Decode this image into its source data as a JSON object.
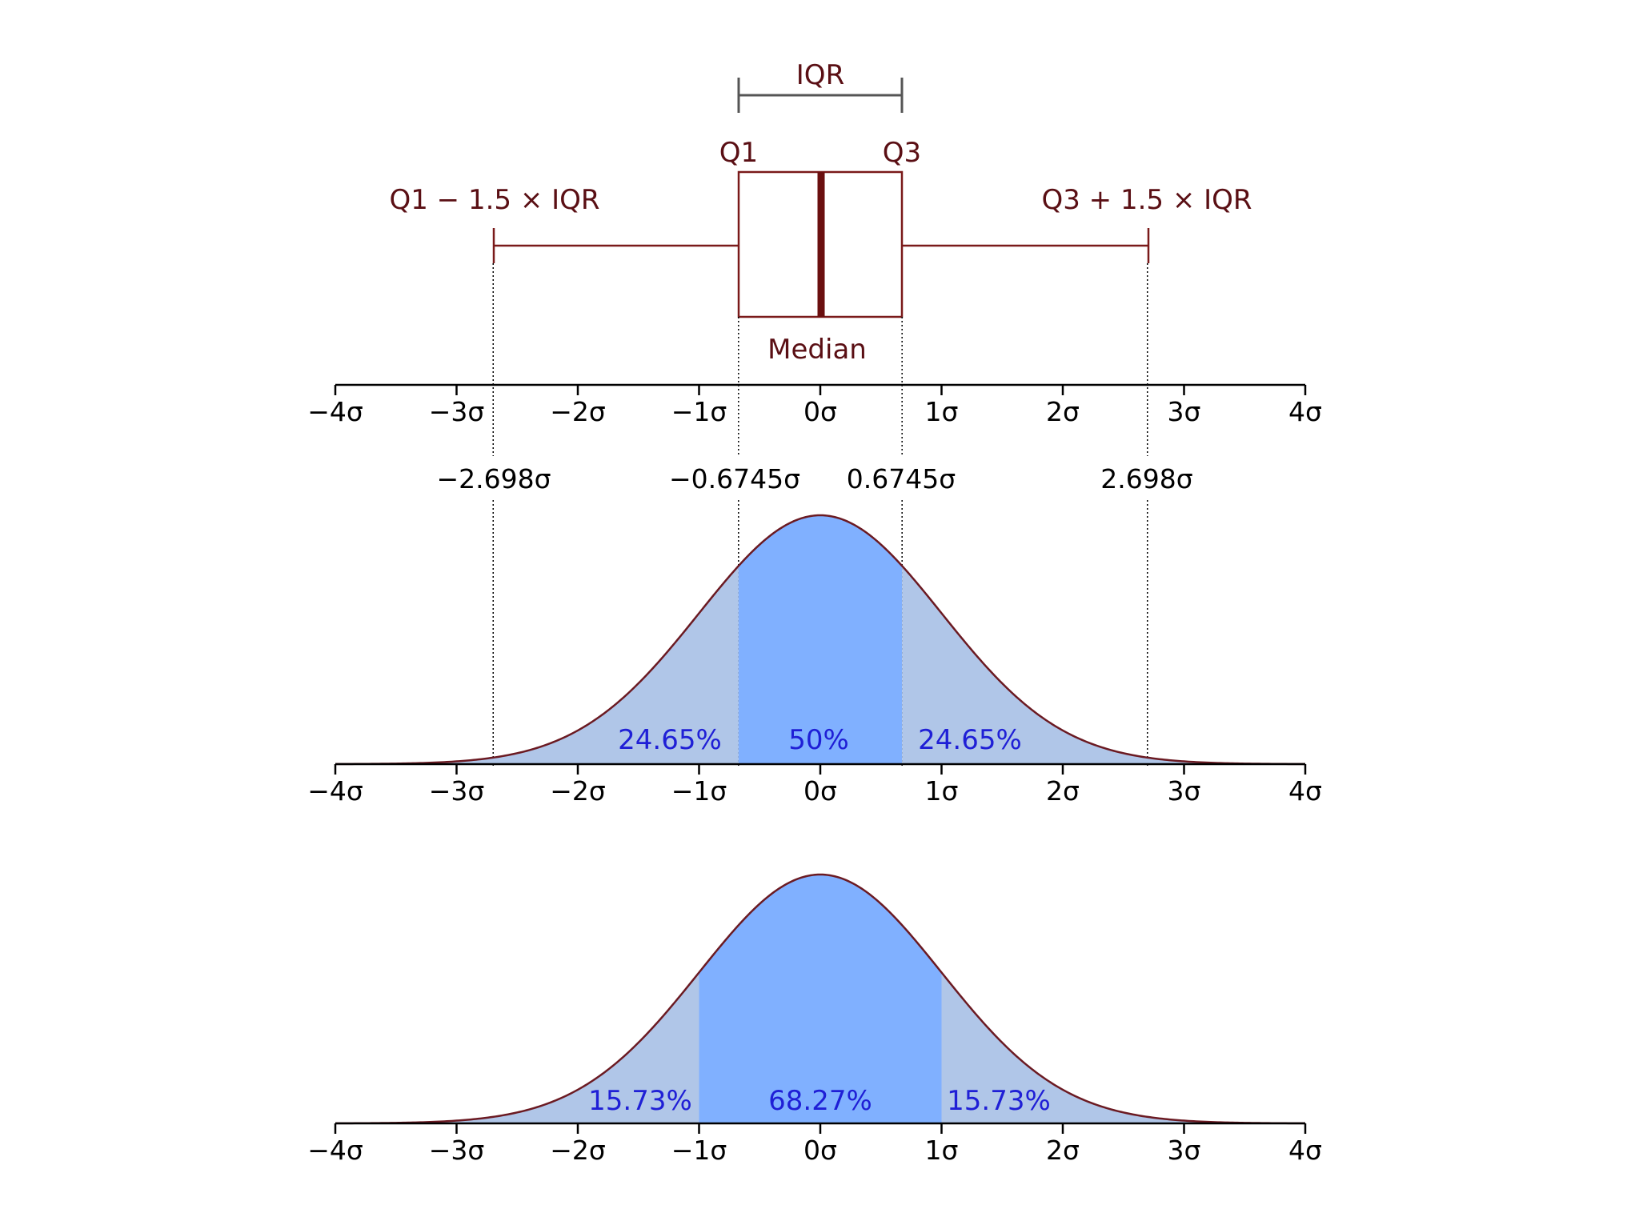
{
  "colors": {
    "box": "#7a1a1a",
    "whisker": "#7a1a1a",
    "median": "#6b0f0f",
    "iqr_bracket": "#555555",
    "curve": "#6b1a22",
    "center_fill": "#80b0ff",
    "tail_fill": "#b0c6e8",
    "percent_text": "#1f1fd6",
    "annotation_text": "#5a0f14"
  },
  "boxplot": {
    "iqr_label": "IQR",
    "q1_label": "Q1",
    "q3_label": "Q3",
    "lower_whisker_label": "Q1 − 1.5 × IQR",
    "upper_whisker_label": "Q3 + 1.5 × IQR",
    "median_label": "Median",
    "q1": -0.6745,
    "q3": 0.6745,
    "median": 0,
    "lower_whisker": -2.698,
    "upper_whisker": 2.698
  },
  "axis_ticks": [
    "−4σ",
    "−3σ",
    "−2σ",
    "−1σ",
    "0σ",
    "1σ",
    "2σ",
    "3σ",
    "4σ"
  ],
  "boundary_labels": [
    "−2.698σ",
    "−0.6745σ",
    "0.6745σ",
    "2.698σ"
  ],
  "chart_data": [
    {
      "type": "area",
      "title": "",
      "xlabel": "",
      "ylabel": "",
      "xlim": [
        -4,
        4
      ],
      "distribution": "standard normal",
      "boundaries": [
        -2.698,
        -0.6745,
        0.6745,
        2.698
      ],
      "regions": [
        {
          "from": -4,
          "to": -0.6745,
          "fill": "tail",
          "percent": "24.65%"
        },
        {
          "from": -0.6745,
          "to": 0.6745,
          "fill": "center",
          "percent": "50%"
        },
        {
          "from": 0.6745,
          "to": 4,
          "fill": "tail",
          "percent": "24.65%"
        }
      ]
    },
    {
      "type": "area",
      "title": "",
      "xlabel": "",
      "ylabel": "",
      "xlim": [
        -4,
        4
      ],
      "distribution": "standard normal",
      "boundaries": [
        -1,
        1
      ],
      "regions": [
        {
          "from": -4,
          "to": -1,
          "fill": "tail",
          "percent": "15.73%"
        },
        {
          "from": -1,
          "to": 1,
          "fill": "center",
          "percent": "68.27%"
        },
        {
          "from": 1,
          "to": 4,
          "fill": "tail",
          "percent": "15.73%"
        }
      ]
    }
  ]
}
